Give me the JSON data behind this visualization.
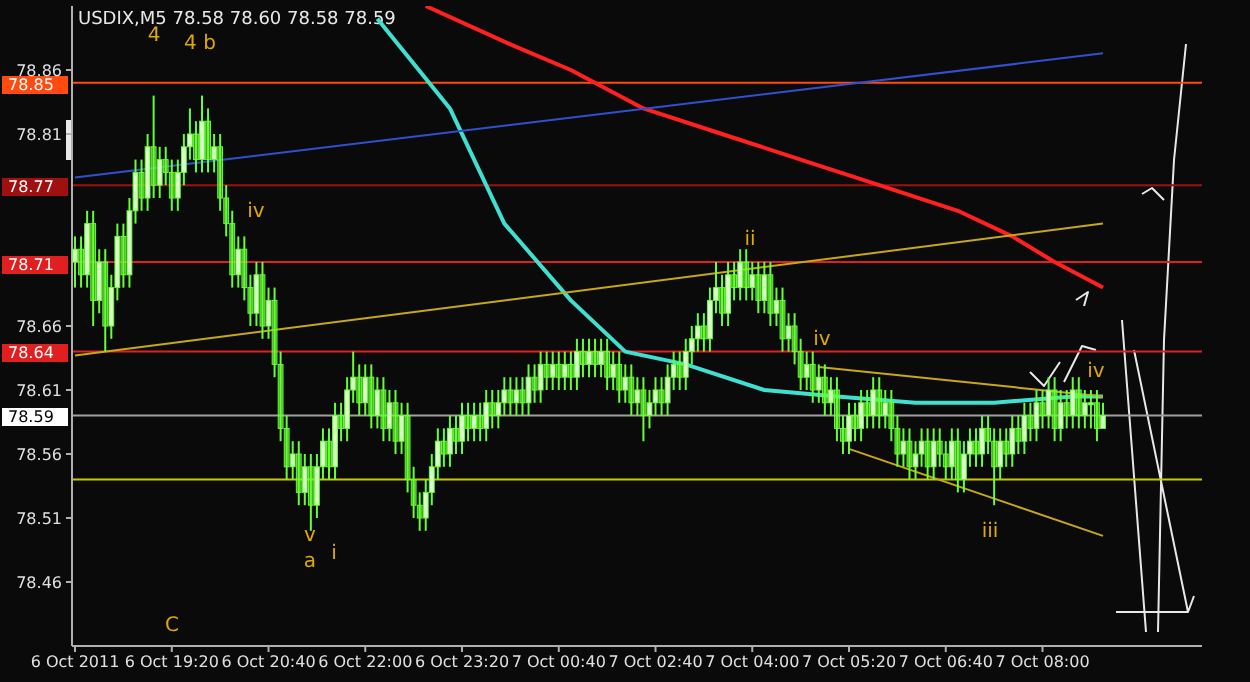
{
  "chart_data": {
    "type": "candlestick",
    "title": "USDIX,M5 78.58 78.60 78.58 78.59",
    "color": "#66ff33",
    "categories": [
      "6 Oct 2011",
      null,
      null,
      null,
      null,
      null,
      null,
      null,
      null,
      null,
      null,
      null,
      null,
      null,
      null,
      null,
      "6 Oct 19:20",
      null,
      null,
      null,
      null,
      null,
      null,
      null,
      null,
      null,
      null,
      null,
      null,
      null,
      null,
      null,
      "6 Oct 20:40",
      null,
      null,
      null,
      null,
      null,
      null,
      null,
      null,
      null,
      null,
      null,
      null,
      null,
      null,
      null,
      "6 Oct 22:00",
      null,
      null,
      null,
      null,
      null,
      null,
      null,
      null,
      null,
      null,
      null,
      null,
      null,
      null,
      null,
      "6 Oct 23:20",
      null,
      null,
      null,
      null,
      null,
      null,
      null,
      null,
      null,
      null,
      null,
      null,
      null,
      null,
      null,
      "7 Oct 00:40",
      null,
      null,
      null,
      null,
      null,
      null,
      null,
      null,
      null,
      null,
      null,
      null,
      null,
      null,
      null,
      "7 Oct 02:40",
      null,
      null,
      null,
      null,
      null,
      null,
      null,
      null,
      null,
      null,
      null,
      null,
      null,
      null,
      null,
      "7 Oct 04:00",
      null,
      null,
      null,
      null,
      null,
      null,
      null,
      null,
      null,
      null,
      null,
      null,
      null,
      null,
      null,
      "7 Oct 05:20",
      null,
      null,
      null,
      null,
      null,
      null,
      null,
      null,
      null,
      null,
      null,
      null,
      null,
      null,
      null,
      "7 Oct 06:40",
      null,
      null,
      null,
      null,
      null,
      null,
      null,
      null,
      null,
      null,
      null,
      null,
      null,
      null,
      null,
      "7 Oct 08:00",
      null,
      null,
      null,
      null,
      null,
      null,
      null,
      null,
      null,
      null
    ],
    "ohlc": [
      [
        78.71,
        78.73,
        78.69,
        78.72
      ],
      [
        78.72,
        78.73,
        78.69,
        78.7
      ],
      [
        78.7,
        78.75,
        78.69,
        78.74
      ],
      [
        78.74,
        78.75,
        78.66,
        78.68
      ],
      [
        78.68,
        78.72,
        78.67,
        78.71
      ],
      [
        78.71,
        78.72,
        78.64,
        78.66
      ],
      [
        78.66,
        78.7,
        78.65,
        78.69
      ],
      [
        78.69,
        78.74,
        78.68,
        78.73
      ],
      [
        78.73,
        78.74,
        78.69,
        78.7
      ],
      [
        78.7,
        78.76,
        78.69,
        78.75
      ],
      [
        78.75,
        78.79,
        78.74,
        78.78
      ],
      [
        78.78,
        78.79,
        78.75,
        78.76
      ],
      [
        78.76,
        78.81,
        78.75,
        78.8
      ],
      [
        78.8,
        78.84,
        78.76,
        78.77
      ],
      [
        78.77,
        78.8,
        78.76,
        78.79
      ],
      [
        78.79,
        78.8,
        78.77,
        78.78
      ],
      [
        78.78,
        78.79,
        78.75,
        78.76
      ],
      [
        78.76,
        78.79,
        78.75,
        78.78
      ],
      [
        78.78,
        78.81,
        78.77,
        78.8
      ],
      [
        78.8,
        78.83,
        78.79,
        78.81
      ],
      [
        78.81,
        78.82,
        78.78,
        78.79
      ],
      [
        78.79,
        78.84,
        78.78,
        78.82
      ],
      [
        78.82,
        78.83,
        78.78,
        78.79
      ],
      [
        78.79,
        78.81,
        78.78,
        78.8
      ],
      [
        78.8,
        78.81,
        78.75,
        78.76
      ],
      [
        78.76,
        78.77,
        78.73,
        78.74
      ],
      [
        78.74,
        78.75,
        78.69,
        78.7
      ],
      [
        78.7,
        78.73,
        78.69,
        78.72
      ],
      [
        78.72,
        78.73,
        78.68,
        78.69
      ],
      [
        78.69,
        78.7,
        78.66,
        78.67
      ],
      [
        78.67,
        78.71,
        78.66,
        78.7
      ],
      [
        78.7,
        78.71,
        78.65,
        78.66
      ],
      [
        78.66,
        78.69,
        78.65,
        78.68
      ],
      [
        78.68,
        78.69,
        78.62,
        78.63
      ],
      [
        78.63,
        78.64,
        78.57,
        78.58
      ],
      [
        78.58,
        78.59,
        78.54,
        78.55
      ],
      [
        78.55,
        78.57,
        78.54,
        78.56
      ],
      [
        78.56,
        78.57,
        78.52,
        78.53
      ],
      [
        78.53,
        78.56,
        78.52,
        78.55
      ],
      [
        78.55,
        78.56,
        78.5,
        78.52
      ],
      [
        78.52,
        78.56,
        78.51,
        78.55
      ],
      [
        78.55,
        78.58,
        78.54,
        78.57
      ],
      [
        78.57,
        78.58,
        78.54,
        78.55
      ],
      [
        78.55,
        78.6,
        78.54,
        78.59
      ],
      [
        78.59,
        78.6,
        78.57,
        78.58
      ],
      [
        78.58,
        78.62,
        78.57,
        78.61
      ],
      [
        78.61,
        78.64,
        78.6,
        78.62
      ],
      [
        78.62,
        78.63,
        78.59,
        78.6
      ],
      [
        78.6,
        78.63,
        78.59,
        78.62
      ],
      [
        78.62,
        78.63,
        78.58,
        78.59
      ],
      [
        78.59,
        78.62,
        78.58,
        78.61
      ],
      [
        78.61,
        78.62,
        78.57,
        78.58
      ],
      [
        78.58,
        78.61,
        78.57,
        78.6
      ],
      [
        78.6,
        78.61,
        78.56,
        78.57
      ],
      [
        78.57,
        78.6,
        78.56,
        78.59
      ],
      [
        78.59,
        78.6,
        78.53,
        78.54
      ],
      [
        78.54,
        78.55,
        78.51,
        78.52
      ],
      [
        78.52,
        78.53,
        78.5,
        78.51
      ],
      [
        78.51,
        78.54,
        78.5,
        78.53
      ],
      [
        78.53,
        78.56,
        78.52,
        78.55
      ],
      [
        78.55,
        78.58,
        78.54,
        78.57
      ],
      [
        78.57,
        78.58,
        78.55,
        78.56
      ],
      [
        78.56,
        78.59,
        78.55,
        78.58
      ],
      [
        78.58,
        78.59,
        78.56,
        78.57
      ],
      [
        78.57,
        78.6,
        78.56,
        78.59
      ],
      [
        78.59,
        78.6,
        78.57,
        78.58
      ],
      [
        78.58,
        78.6,
        78.57,
        78.59
      ],
      [
        78.59,
        78.6,
        78.57,
        78.58
      ],
      [
        78.58,
        78.61,
        78.57,
        78.6
      ],
      [
        78.6,
        78.61,
        78.58,
        78.59
      ],
      [
        78.59,
        78.61,
        78.58,
        78.6
      ],
      [
        78.6,
        78.62,
        78.59,
        78.61
      ],
      [
        78.61,
        78.62,
        78.59,
        78.6
      ],
      [
        78.6,
        78.62,
        78.59,
        78.61
      ],
      [
        78.61,
        78.62,
        78.59,
        78.6
      ],
      [
        78.6,
        78.63,
        78.59,
        78.62
      ],
      [
        78.62,
        78.63,
        78.6,
        78.61
      ],
      [
        78.61,
        78.64,
        78.6,
        78.63
      ],
      [
        78.63,
        78.64,
        78.61,
        78.62
      ],
      [
        78.62,
        78.64,
        78.61,
        78.63
      ],
      [
        78.63,
        78.64,
        78.61,
        78.62
      ],
      [
        78.62,
        78.64,
        78.61,
        78.63
      ],
      [
        78.63,
        78.64,
        78.61,
        78.62
      ],
      [
        78.62,
        78.65,
        78.61,
        78.64
      ],
      [
        78.64,
        78.65,
        78.62,
        78.63
      ],
      [
        78.63,
        78.65,
        78.62,
        78.64
      ],
      [
        78.64,
        78.65,
        78.62,
        78.63
      ],
      [
        78.63,
        78.65,
        78.62,
        78.64
      ],
      [
        78.64,
        78.65,
        78.61,
        78.62
      ],
      [
        78.62,
        78.64,
        78.61,
        78.63
      ],
      [
        78.63,
        78.64,
        78.6,
        78.61
      ],
      [
        78.61,
        78.63,
        78.6,
        78.62
      ],
      [
        78.62,
        78.63,
        78.59,
        78.6
      ],
      [
        78.6,
        78.62,
        78.59,
        78.61
      ],
      [
        78.61,
        78.62,
        78.57,
        78.59
      ],
      [
        78.59,
        78.61,
        78.58,
        78.6
      ],
      [
        78.6,
        78.62,
        78.59,
        78.61
      ],
      [
        78.61,
        78.62,
        78.59,
        78.6
      ],
      [
        78.6,
        78.63,
        78.59,
        78.62
      ],
      [
        78.62,
        78.64,
        78.61,
        78.63
      ],
      [
        78.63,
        78.64,
        78.61,
        78.62
      ],
      [
        78.62,
        78.65,
        78.61,
        78.64
      ],
      [
        78.64,
        78.66,
        78.63,
        78.65
      ],
      [
        78.65,
        78.67,
        78.64,
        78.66
      ],
      [
        78.66,
        78.67,
        78.64,
        78.65
      ],
      [
        78.65,
        78.69,
        78.64,
        78.68
      ],
      [
        78.68,
        78.71,
        78.67,
        78.69
      ],
      [
        78.69,
        78.7,
        78.66,
        78.67
      ],
      [
        78.67,
        78.71,
        78.66,
        78.7
      ],
      [
        78.7,
        78.71,
        78.68,
        78.69
      ],
      [
        78.69,
        78.72,
        78.68,
        78.71
      ],
      [
        78.71,
        78.72,
        78.68,
        78.69
      ],
      [
        78.69,
        78.71,
        78.68,
        78.7
      ],
      [
        78.7,
        78.71,
        78.67,
        78.68
      ],
      [
        78.68,
        78.71,
        78.67,
        78.7
      ],
      [
        78.7,
        78.71,
        78.66,
        78.67
      ],
      [
        78.67,
        78.69,
        78.66,
        78.68
      ],
      [
        78.68,
        78.69,
        78.64,
        78.65
      ],
      [
        78.65,
        78.67,
        78.64,
        78.66
      ],
      [
        78.66,
        78.67,
        78.63,
        78.64
      ],
      [
        78.64,
        78.65,
        78.61,
        78.62
      ],
      [
        78.62,
        78.64,
        78.61,
        78.63
      ],
      [
        78.63,
        78.64,
        78.6,
        78.61
      ],
      [
        78.61,
        78.63,
        78.6,
        78.62
      ],
      [
        78.62,
        78.63,
        78.59,
        78.6
      ],
      [
        78.6,
        78.62,
        78.59,
        78.61
      ],
      [
        78.61,
        78.62,
        78.57,
        78.58
      ],
      [
        78.58,
        78.59,
        78.56,
        78.57
      ],
      [
        78.57,
        78.6,
        78.56,
        78.59
      ],
      [
        78.59,
        78.6,
        78.57,
        78.58
      ],
      [
        78.58,
        78.61,
        78.57,
        78.6
      ],
      [
        78.6,
        78.61,
        78.58,
        78.59
      ],
      [
        78.59,
        78.62,
        78.58,
        78.61
      ],
      [
        78.61,
        78.62,
        78.58,
        78.59
      ],
      [
        78.59,
        78.61,
        78.58,
        78.6
      ],
      [
        78.6,
        78.61,
        78.57,
        78.58
      ],
      [
        78.58,
        78.59,
        78.55,
        78.56
      ],
      [
        78.56,
        78.58,
        78.55,
        78.57
      ],
      [
        78.57,
        78.58,
        78.54,
        78.55
      ],
      [
        78.55,
        78.57,
        78.54,
        78.56
      ],
      [
        78.56,
        78.58,
        78.55,
        78.57
      ],
      [
        78.57,
        78.58,
        78.54,
        78.55
      ],
      [
        78.55,
        78.58,
        78.54,
        78.57
      ],
      [
        78.57,
        78.58,
        78.55,
        78.56
      ],
      [
        78.56,
        78.57,
        78.54,
        78.55
      ],
      [
        78.55,
        78.58,
        78.54,
        78.57
      ],
      [
        78.57,
        78.58,
        78.53,
        78.54
      ],
      [
        78.54,
        78.57,
        78.53,
        78.56
      ],
      [
        78.56,
        78.58,
        78.55,
        78.57
      ],
      [
        78.57,
        78.58,
        78.55,
        78.56
      ],
      [
        78.56,
        78.59,
        78.55,
        78.58
      ],
      [
        78.58,
        78.59,
        78.56,
        78.57
      ],
      [
        78.57,
        78.58,
        78.52,
        78.55
      ],
      [
        78.55,
        78.58,
        78.54,
        78.57
      ],
      [
        78.57,
        78.58,
        78.55,
        78.56
      ],
      [
        78.56,
        78.59,
        78.55,
        78.58
      ],
      [
        78.58,
        78.59,
        78.56,
        78.57
      ],
      [
        78.57,
        78.6,
        78.56,
        78.59
      ],
      [
        78.59,
        78.6,
        78.57,
        78.58
      ],
      [
        78.58,
        78.61,
        78.57,
        78.6
      ],
      [
        78.6,
        78.61,
        78.58,
        78.59
      ],
      [
        78.59,
        78.62,
        78.58,
        78.61
      ],
      [
        78.61,
        78.62,
        78.57,
        78.58
      ],
      [
        78.58,
        78.61,
        78.57,
        78.6
      ],
      [
        78.6,
        78.61,
        78.58,
        78.59
      ],
      [
        78.59,
        78.62,
        78.58,
        78.61
      ],
      [
        78.61,
        78.62,
        78.58,
        78.59
      ],
      [
        78.59,
        78.61,
        78.58,
        78.6
      ],
      [
        78.6,
        78.61,
        78.58,
        78.6
      ],
      [
        78.6,
        78.61,
        78.57,
        78.58
      ],
      [
        78.58,
        78.6,
        78.58,
        78.59
      ]
    ],
    "series": [
      {
        "type": "line",
        "color": "#40e0d0",
        "values": [
          null,
          null,
          null,
          null,
          null,
          null,
          null,
          null,
          null,
          null,
          null,
          null,
          null,
          null,
          null,
          null,
          null,
          null,
          null,
          null,
          null,
          null,
          null,
          null,
          null,
          null,
          null,
          null,
          null,
          null,
          null,
          null,
          null,
          null,
          null,
          null,
          null,
          null,
          null,
          null,
          null,
          null,
          null,
          null,
          null,
          null,
          null,
          null,
          null,
          null,
          78.9,
          null,
          null,
          null,
          null,
          null,
          null,
          null,
          null,
          null,
          null,
          null,
          78.83,
          null,
          null,
          null,
          null,
          null,
          null,
          null,
          null,
          78.74,
          null,
          null,
          null,
          null,
          null,
          null,
          null,
          null,
          null,
          null,
          78.68,
          null,
          null,
          null,
          null,
          null,
          null,
          null,
          null,
          78.64,
          null,
          null,
          null,
          null,
          null,
          null,
          null,
          null,
          null,
          78.63,
          null,
          null,
          null,
          null,
          null,
          null,
          null,
          null,
          null,
          null,
          null,
          null,
          78.61,
          null,
          null,
          null,
          null,
          null,
          null,
          null,
          null,
          null,
          null,
          null,
          78.605,
          null,
          null,
          null,
          null,
          null,
          null,
          null,
          null,
          null,
          null,
          null,
          null,
          78.6,
          null,
          null,
          null,
          null,
          null,
          null,
          null,
          null,
          null,
          null,
          null,
          null,
          78.6,
          null,
          null,
          null,
          null,
          null,
          null,
          null,
          null,
          null,
          null,
          null,
          null,
          78.605,
          null,
          null,
          null,
          null,
          78.605
        ]
      },
      {
        "type": "line",
        "color": "#ff2020",
        "values": [
          null,
          null,
          null,
          null,
          null,
          null,
          null,
          null,
          null,
          null,
          null,
          null,
          null,
          null,
          null,
          null,
          null,
          null,
          null,
          null,
          null,
          null,
          null,
          null,
          null,
          null,
          null,
          null,
          null,
          null,
          null,
          null,
          null,
          null,
          null,
          null,
          null,
          null,
          null,
          null,
          null,
          null,
          null,
          null,
          null,
          null,
          null,
          null,
          null,
          null,
          null,
          null,
          null,
          null,
          null,
          null,
          null,
          null,
          78.91,
          null,
          null,
          null,
          null,
          null,
          null,
          null,
          null,
          null,
          null,
          null,
          null,
          null,
          78.88,
          null,
          null,
          null,
          null,
          null,
          null,
          null,
          null,
          null,
          78.86,
          null,
          null,
          null,
          null,
          null,
          null,
          null,
          null,
          null,
          null,
          null,
          78.83,
          null,
          null,
          null,
          null,
          null,
          null,
          null,
          null,
          null,
          null,
          null,
          null,
          78.81,
          null,
          null,
          null,
          null,
          null,
          null,
          null,
          null,
          null,
          null,
          null,
          null,
          78.79,
          null,
          null,
          null,
          null,
          null,
          null,
          null,
          null,
          null,
          null,
          null,
          null,
          78.77,
          null,
          null,
          null,
          null,
          null,
          null,
          null,
          null,
          null,
          null,
          null,
          null,
          78.75,
          null,
          null,
          null,
          null,
          null,
          null,
          null,
          null,
          78.73,
          null,
          null,
          null,
          null,
          null,
          null,
          78.71,
          null,
          null,
          null,
          null,
          null,
          null,
          null,
          78.69
        ]
      },
      {
        "type": "line",
        "color": "#3050d0",
        "values": [
          78.776,
          null,
          null,
          null,
          null,
          null,
          null,
          null,
          null,
          null,
          null,
          null,
          null,
          null,
          null,
          null,
          null,
          null,
          null,
          null,
          null,
          null,
          null,
          null,
          null,
          null,
          null,
          null,
          null,
          null,
          null,
          null,
          null,
          null,
          null,
          null,
          null,
          null,
          null,
          null,
          null,
          null,
          null,
          null,
          null,
          null,
          null,
          null,
          null,
          null,
          null,
          null,
          null,
          null,
          null,
          null,
          null,
          null,
          null,
          null,
          null,
          null,
          null,
          null,
          null,
          null,
          null,
          null,
          null,
          null,
          null,
          null,
          null,
          null,
          null,
          null,
          null,
          null,
          null,
          null,
          null,
          null,
          null,
          null,
          null,
          null,
          null,
          null,
          null,
          null,
          null,
          null,
          null,
          null,
          null,
          null,
          null,
          null,
          null,
          null,
          null,
          null,
          null,
          null,
          null,
          null,
          null,
          null,
          null,
          null,
          null,
          null,
          null,
          null,
          null,
          null,
          null,
          null,
          null,
          null,
          null,
          null,
          null,
          null,
          null,
          null,
          null,
          null,
          null,
          null,
          null,
          null,
          null,
          null,
          null,
          null,
          null,
          null,
          null,
          null,
          null,
          null,
          null,
          null,
          null,
          null,
          null,
          null,
          null,
          null,
          null,
          null,
          null,
          null,
          null,
          null,
          null,
          null,
          null,
          null,
          null,
          null,
          null,
          null,
          null,
          null,
          null,
          null,
          null,
          null,
          78.873
        ]
      },
      {
        "type": "line",
        "color": "#c8a818",
        "values": [
          78.637,
          null,
          null,
          null,
          null,
          null,
          null,
          null,
          null,
          null,
          null,
          null,
          null,
          null,
          null,
          null,
          null,
          null,
          null,
          null,
          null,
          null,
          null,
          null,
          null,
          null,
          null,
          null,
          null,
          null,
          null,
          null,
          null,
          null,
          null,
          null,
          null,
          null,
          null,
          null,
          null,
          null,
          null,
          null,
          null,
          null,
          null,
          null,
          null,
          null,
          null,
          null,
          null,
          null,
          null,
          null,
          null,
          null,
          null,
          null,
          null,
          null,
          null,
          null,
          null,
          null,
          null,
          null,
          null,
          null,
          null,
          null,
          null,
          null,
          null,
          null,
          null,
          null,
          null,
          null,
          null,
          null,
          null,
          null,
          null,
          null,
          null,
          null,
          null,
          null,
          null,
          null,
          null,
          null,
          null,
          null,
          null,
          null,
          null,
          null,
          null,
          null,
          null,
          null,
          null,
          null,
          null,
          null,
          null,
          null,
          null,
          null,
          null,
          null,
          null,
          null,
          null,
          null,
          null,
          null,
          null,
          null,
          null,
          null,
          null,
          null,
          null,
          null,
          null,
          null,
          null,
          null,
          null,
          null,
          null,
          null,
          null,
          null,
          null,
          null,
          null,
          null,
          null,
          null,
          null,
          null,
          null,
          null,
          null,
          null,
          null,
          null,
          null,
          null,
          null,
          null,
          null,
          null,
          null,
          null,
          null,
          null,
          null,
          null,
          null,
          null,
          null,
          null,
          null,
          null,
          78.74
        ]
      },
      {
        "type": "line",
        "color": "#c8a818",
        "values": [
          null,
          null,
          null,
          null,
          null,
          null,
          null,
          null,
          null,
          null,
          null,
          null,
          null,
          null,
          null,
          null,
          null,
          null,
          null,
          null,
          null,
          null,
          null,
          null,
          null,
          null,
          null,
          null,
          null,
          null,
          null,
          null,
          null,
          null,
          null,
          null,
          null,
          null,
          null,
          null,
          null,
          null,
          null,
          null,
          null,
          null,
          null,
          null,
          null,
          null,
          null,
          null,
          null,
          null,
          null,
          null,
          null,
          null,
          null,
          null,
          null,
          null,
          null,
          null,
          null,
          null,
          null,
          null,
          null,
          null,
          null,
          null,
          null,
          null,
          null,
          null,
          null,
          null,
          null,
          null,
          null,
          null,
          null,
          null,
          null,
          null,
          null,
          null,
          null,
          null,
          null,
          null,
          null,
          null,
          null,
          null,
          null,
          null,
          null,
          null,
          null,
          null,
          null,
          null,
          null,
          null,
          null,
          null,
          null,
          null,
          null,
          null,
          null,
          null,
          null,
          null,
          null,
          null,
          null,
          null,
          null,
          null,
          null,
          78.628,
          null,
          null,
          null,
          null,
          null,
          null,
          null,
          null,
          null,
          null,
          null,
          null,
          null,
          null,
          null,
          null,
          null,
          null,
          null,
          null,
          null,
          null,
          null,
          null,
          null,
          null,
          null,
          null,
          null,
          null,
          null,
          null,
          null,
          null,
          null,
          null,
          null,
          null,
          null,
          null,
          null,
          null,
          null,
          null,
          null,
          null,
          78.605
        ]
      },
      {
        "type": "line",
        "color": "#c8a818",
        "values": [
          null,
          null,
          null,
          null,
          null,
          null,
          null,
          null,
          null,
          null,
          null,
          null,
          null,
          null,
          null,
          null,
          null,
          null,
          null,
          null,
          null,
          null,
          null,
          null,
          null,
          null,
          null,
          null,
          null,
          null,
          null,
          null,
          null,
          null,
          null,
          null,
          null,
          null,
          null,
          null,
          null,
          null,
          null,
          null,
          null,
          null,
          null,
          null,
          null,
          null,
          null,
          null,
          null,
          null,
          null,
          null,
          null,
          null,
          null,
          null,
          null,
          null,
          null,
          null,
          null,
          null,
          null,
          null,
          null,
          null,
          null,
          null,
          null,
          null,
          null,
          null,
          null,
          null,
          null,
          null,
          null,
          null,
          null,
          null,
          null,
          null,
          null,
          null,
          null,
          null,
          null,
          null,
          null,
          null,
          null,
          null,
          null,
          null,
          null,
          null,
          null,
          null,
          null,
          null,
          null,
          null,
          null,
          null,
          null,
          null,
          null,
          null,
          null,
          null,
          null,
          null,
          null,
          null,
          null,
          null,
          null,
          null,
          null,
          null,
          null,
          null,
          null,
          null,
          78.564,
          null,
          null,
          null,
          null,
          null,
          null,
          null,
          null,
          null,
          null,
          null,
          null,
          null,
          null,
          null,
          null,
          null,
          null,
          null,
          null,
          null,
          null,
          null,
          null,
          null,
          null,
          null,
          null,
          null,
          null,
          null,
          null,
          null,
          null,
          null,
          null,
          null,
          null,
          null,
          null,
          null,
          78.496
        ]
      }
    ],
    "ylim": [
      78.41,
      78.91
    ],
    "yticks": [
      78.46,
      78.51,
      78.56,
      78.61,
      78.66,
      78.81,
      78.86
    ],
    "ref_lines": [
      {
        "axis": "y",
        "value": 78.85,
        "label": "78.85",
        "color": "#ff4a10"
      },
      {
        "axis": "y",
        "value": 78.77,
        "label": "78.77",
        "color": "#a01010"
      },
      {
        "axis": "y",
        "value": 78.71,
        "label": "78.71",
        "color": "#e02020"
      },
      {
        "axis": "y",
        "value": 78.64,
        "label": "78.64",
        "color": "#e02020"
      },
      {
        "axis": "y",
        "value": 78.59,
        "label": "78.59",
        "color": "#a0a0a0"
      },
      {
        "axis": "y",
        "value": 78.54,
        "label": null,
        "color": "#c8c800"
      }
    ],
    "annotations": [
      "4",
      "4 b",
      "iv",
      "v",
      "a",
      "i",
      "C",
      "ii",
      "iv",
      "iii",
      "iv"
    ]
  }
}
